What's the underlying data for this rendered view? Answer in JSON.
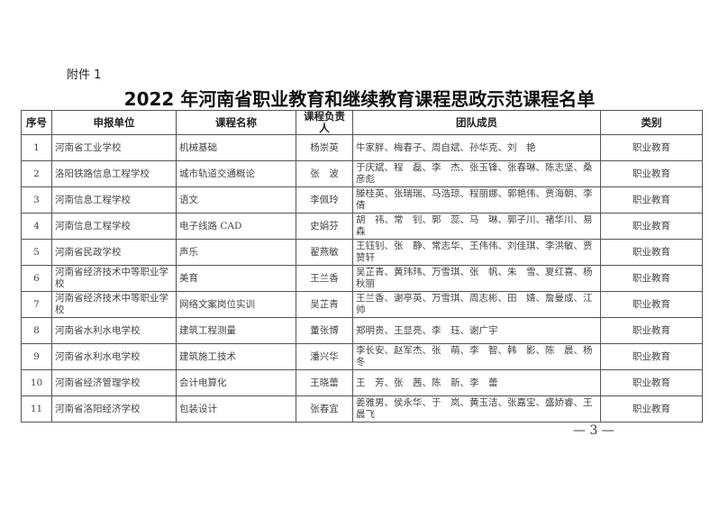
{
  "attachment_label": "附件 1",
  "title": "2022 年河南省职业教育和继续教育课程思政示范课程名单",
  "table": {
    "headers": [
      "序号",
      "申报单位",
      "课程名称",
      "课程负责人",
      "团队成员",
      "类别"
    ],
    "rows": [
      [
        "1",
        "河南省工业学校",
        "机械基础",
        "杨崇英",
        "牛家胖、梅春子、周自斌、孙华克、刘　艳",
        "职业教育"
      ],
      [
        "2",
        "洛阳铁路信息工程学校",
        "城市轨道交通概论",
        "张　波",
        "于庆斌、程　磊、李　杰、张玉锋、张春琳、陈志坚、桑彦彪",
        "职业教育"
      ],
      [
        "3",
        "河南信息工程学校",
        "语文",
        "李佩玲",
        "滕桂英、张瑞瑞、马浩琼、程丽娜、郭艳伟、贾海朝、李　倩",
        "职业教育"
      ],
      [
        "4",
        "河南信息工程学校",
        "电子线路 CAD",
        "史娟芬",
        "胡　祎、常　钊、郭　蕊、马　琳、郭子川、褚华川、易　森",
        "职业教育"
      ],
      [
        "5",
        "河南省民政学校",
        "声乐",
        "翟燕敏",
        "王钰钊、张　静、常志华、王伟伟、刘佳琪、李洪敏、贾赞轩",
        "职业教育"
      ],
      [
        "6",
        "河南省经济技术中等职业学校",
        "美育",
        "王兰香",
        "吴芷青、黄玮玮、万雪琪、张　帆、朱　雪、夏红喜、杨秋丽",
        "职业教育"
      ],
      [
        "7",
        "河南省经济技术中等职业学校",
        "网络文案岗位实训",
        "吴芷青",
        "王兰香、谢亭英、万雪琪、周志彬、田　婧、詹曼成、江　帅",
        "职业教育"
      ],
      [
        "8",
        "河南省水利水电学校",
        "建筑工程测量",
        "董张博",
        "郑明贵、王显亮、李　珏、谢广宇",
        "职业教育"
      ],
      [
        "9",
        "河南省水利水电学校",
        "建筑施工技术",
        "潘兴华",
        "李长安、赵军杰、张　萌、李　智、韩　影、陈　晨、杨　冬",
        "职业教育"
      ],
      [
        "10",
        "河南省经济管理学校",
        "会计电算化",
        "王晓蕾",
        "王　芳、张　茜、陈　新、李　蕾",
        "职业教育"
      ],
      [
        "11",
        "河南省洛阳经济学校",
        "包装设计",
        "张春宜",
        "姜雅男、侯永华、于　岚、黄玉洁、张嘉宝、盛娇睿、王晨飞",
        "职业教育"
      ]
    ]
  },
  "page_number": "— 3 —"
}
